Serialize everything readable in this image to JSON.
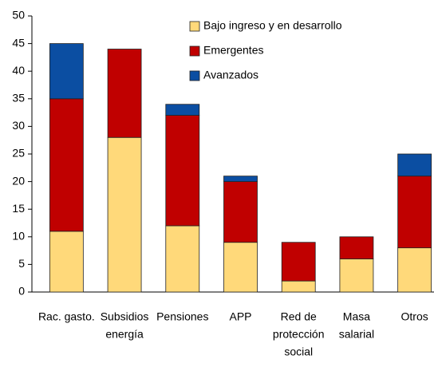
{
  "chart_data": {
    "type": "stacked_bar",
    "categories": [
      [
        "Rac. gasto."
      ],
      [
        "Subsidios",
        "energía"
      ],
      [
        "Pensiones"
      ],
      [
        "APP"
      ],
      [
        "Red de",
        "protección",
        "social"
      ],
      [
        "Masa",
        "salarial"
      ],
      [
        "Otros"
      ]
    ],
    "series": [
      {
        "name": "Bajo ingreso y en desarrollo",
        "color": "#ffd97a",
        "values": [
          11,
          28,
          12,
          9,
          2,
          6,
          8
        ]
      },
      {
        "name": "Emergentes",
        "color": "#c00000",
        "values": [
          24,
          16,
          20,
          11,
          7,
          4,
          13
        ]
      },
      {
        "name": "Avanzados",
        "color": "#0b4ea2",
        "values": [
          10,
          0,
          2,
          1,
          0,
          0,
          4
        ]
      }
    ],
    "ylim": [
      0,
      50
    ],
    "yticks": [
      0,
      5,
      10,
      15,
      20,
      25,
      30,
      35,
      40,
      45,
      50
    ],
    "grid": false
  }
}
